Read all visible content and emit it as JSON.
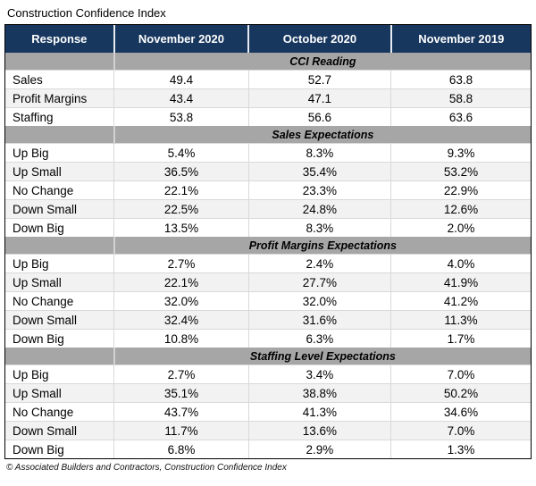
{
  "page_title": "Construction Confidence Index",
  "colors": {
    "header_bg": "#17375E",
    "header_text": "#FFFFFF",
    "section_band_bg": "#A6A6A6",
    "row_alt_bg": "#F2F2F2",
    "outer_border": "#000000",
    "inner_border": "#D9D9D9"
  },
  "footer": {
    "credit": "© Associated Builders and Contractors, Construction Confidence Index"
  },
  "chart_data": {
    "type": "table",
    "title": "Construction Confidence Index",
    "columns": [
      "Response",
      "November 2020",
      "October 2020",
      "November 2019"
    ],
    "sections": [
      {
        "header": "CCI Reading",
        "rows": [
          {
            "label": "Sales",
            "values": [
              "49.4",
              "52.7",
              "63.8"
            ]
          },
          {
            "label": "Profit Margins",
            "values": [
              "43.4",
              "47.1",
              "58.8"
            ]
          },
          {
            "label": "Staffing",
            "values": [
              "53.8",
              "56.6",
              "63.6"
            ]
          }
        ]
      },
      {
        "header": "Sales Expectations",
        "rows": [
          {
            "label": "Up Big",
            "values": [
              "5.4%",
              "8.3%",
              "9.3%"
            ]
          },
          {
            "label": "Up Small",
            "values": [
              "36.5%",
              "35.4%",
              "53.2%"
            ]
          },
          {
            "label": "No Change",
            "values": [
              "22.1%",
              "23.3%",
              "22.9%"
            ]
          },
          {
            "label": "Down Small",
            "values": [
              "22.5%",
              "24.8%",
              "12.6%"
            ]
          },
          {
            "label": "Down Big",
            "values": [
              "13.5%",
              "8.3%",
              "2.0%"
            ]
          }
        ]
      },
      {
        "header": "Profit Margins Expectations",
        "rows": [
          {
            "label": "Up Big",
            "values": [
              "2.7%",
              "2.4%",
              "4.0%"
            ]
          },
          {
            "label": "Up Small",
            "values": [
              "22.1%",
              "27.7%",
              "41.9%"
            ]
          },
          {
            "label": "No Change",
            "values": [
              "32.0%",
              "32.0%",
              "41.2%"
            ]
          },
          {
            "label": "Down Small",
            "values": [
              "32.4%",
              "31.6%",
              "11.3%"
            ]
          },
          {
            "label": "Down Big",
            "values": [
              "10.8%",
              "6.3%",
              "1.7%"
            ]
          }
        ]
      },
      {
        "header": "Staffing Level Expectations",
        "rows": [
          {
            "label": "Up Big",
            "values": [
              "2.7%",
              "3.4%",
              "7.0%"
            ]
          },
          {
            "label": "Up Small",
            "values": [
              "35.1%",
              "38.8%",
              "50.2%"
            ]
          },
          {
            "label": "No Change",
            "values": [
              "43.7%",
              "41.3%",
              "34.6%"
            ]
          },
          {
            "label": "Down Small",
            "values": [
              "11.7%",
              "13.6%",
              "7.0%"
            ]
          },
          {
            "label": "Down Big",
            "values": [
              "6.8%",
              "2.9%",
              "1.3%"
            ]
          }
        ]
      }
    ],
    "footnote": "© Associated Builders and Contractors, Construction Confidence Index"
  }
}
